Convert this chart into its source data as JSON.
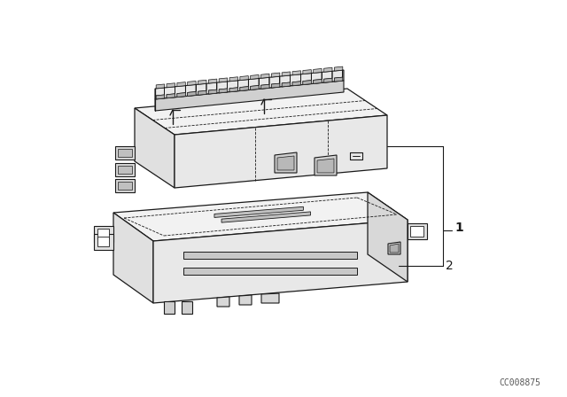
{
  "bg_color": "#ffffff",
  "line_color": "#1a1a1a",
  "line_width": 0.9,
  "label1": "1",
  "label2": "2",
  "watermark": "CC008875",
  "fig_width": 6.4,
  "fig_height": 4.48,
  "face_top": "#f2f2f2",
  "face_front": "#e0e0e0",
  "face_right": "#d8d8d8",
  "face_inner": "#e8e8e8"
}
